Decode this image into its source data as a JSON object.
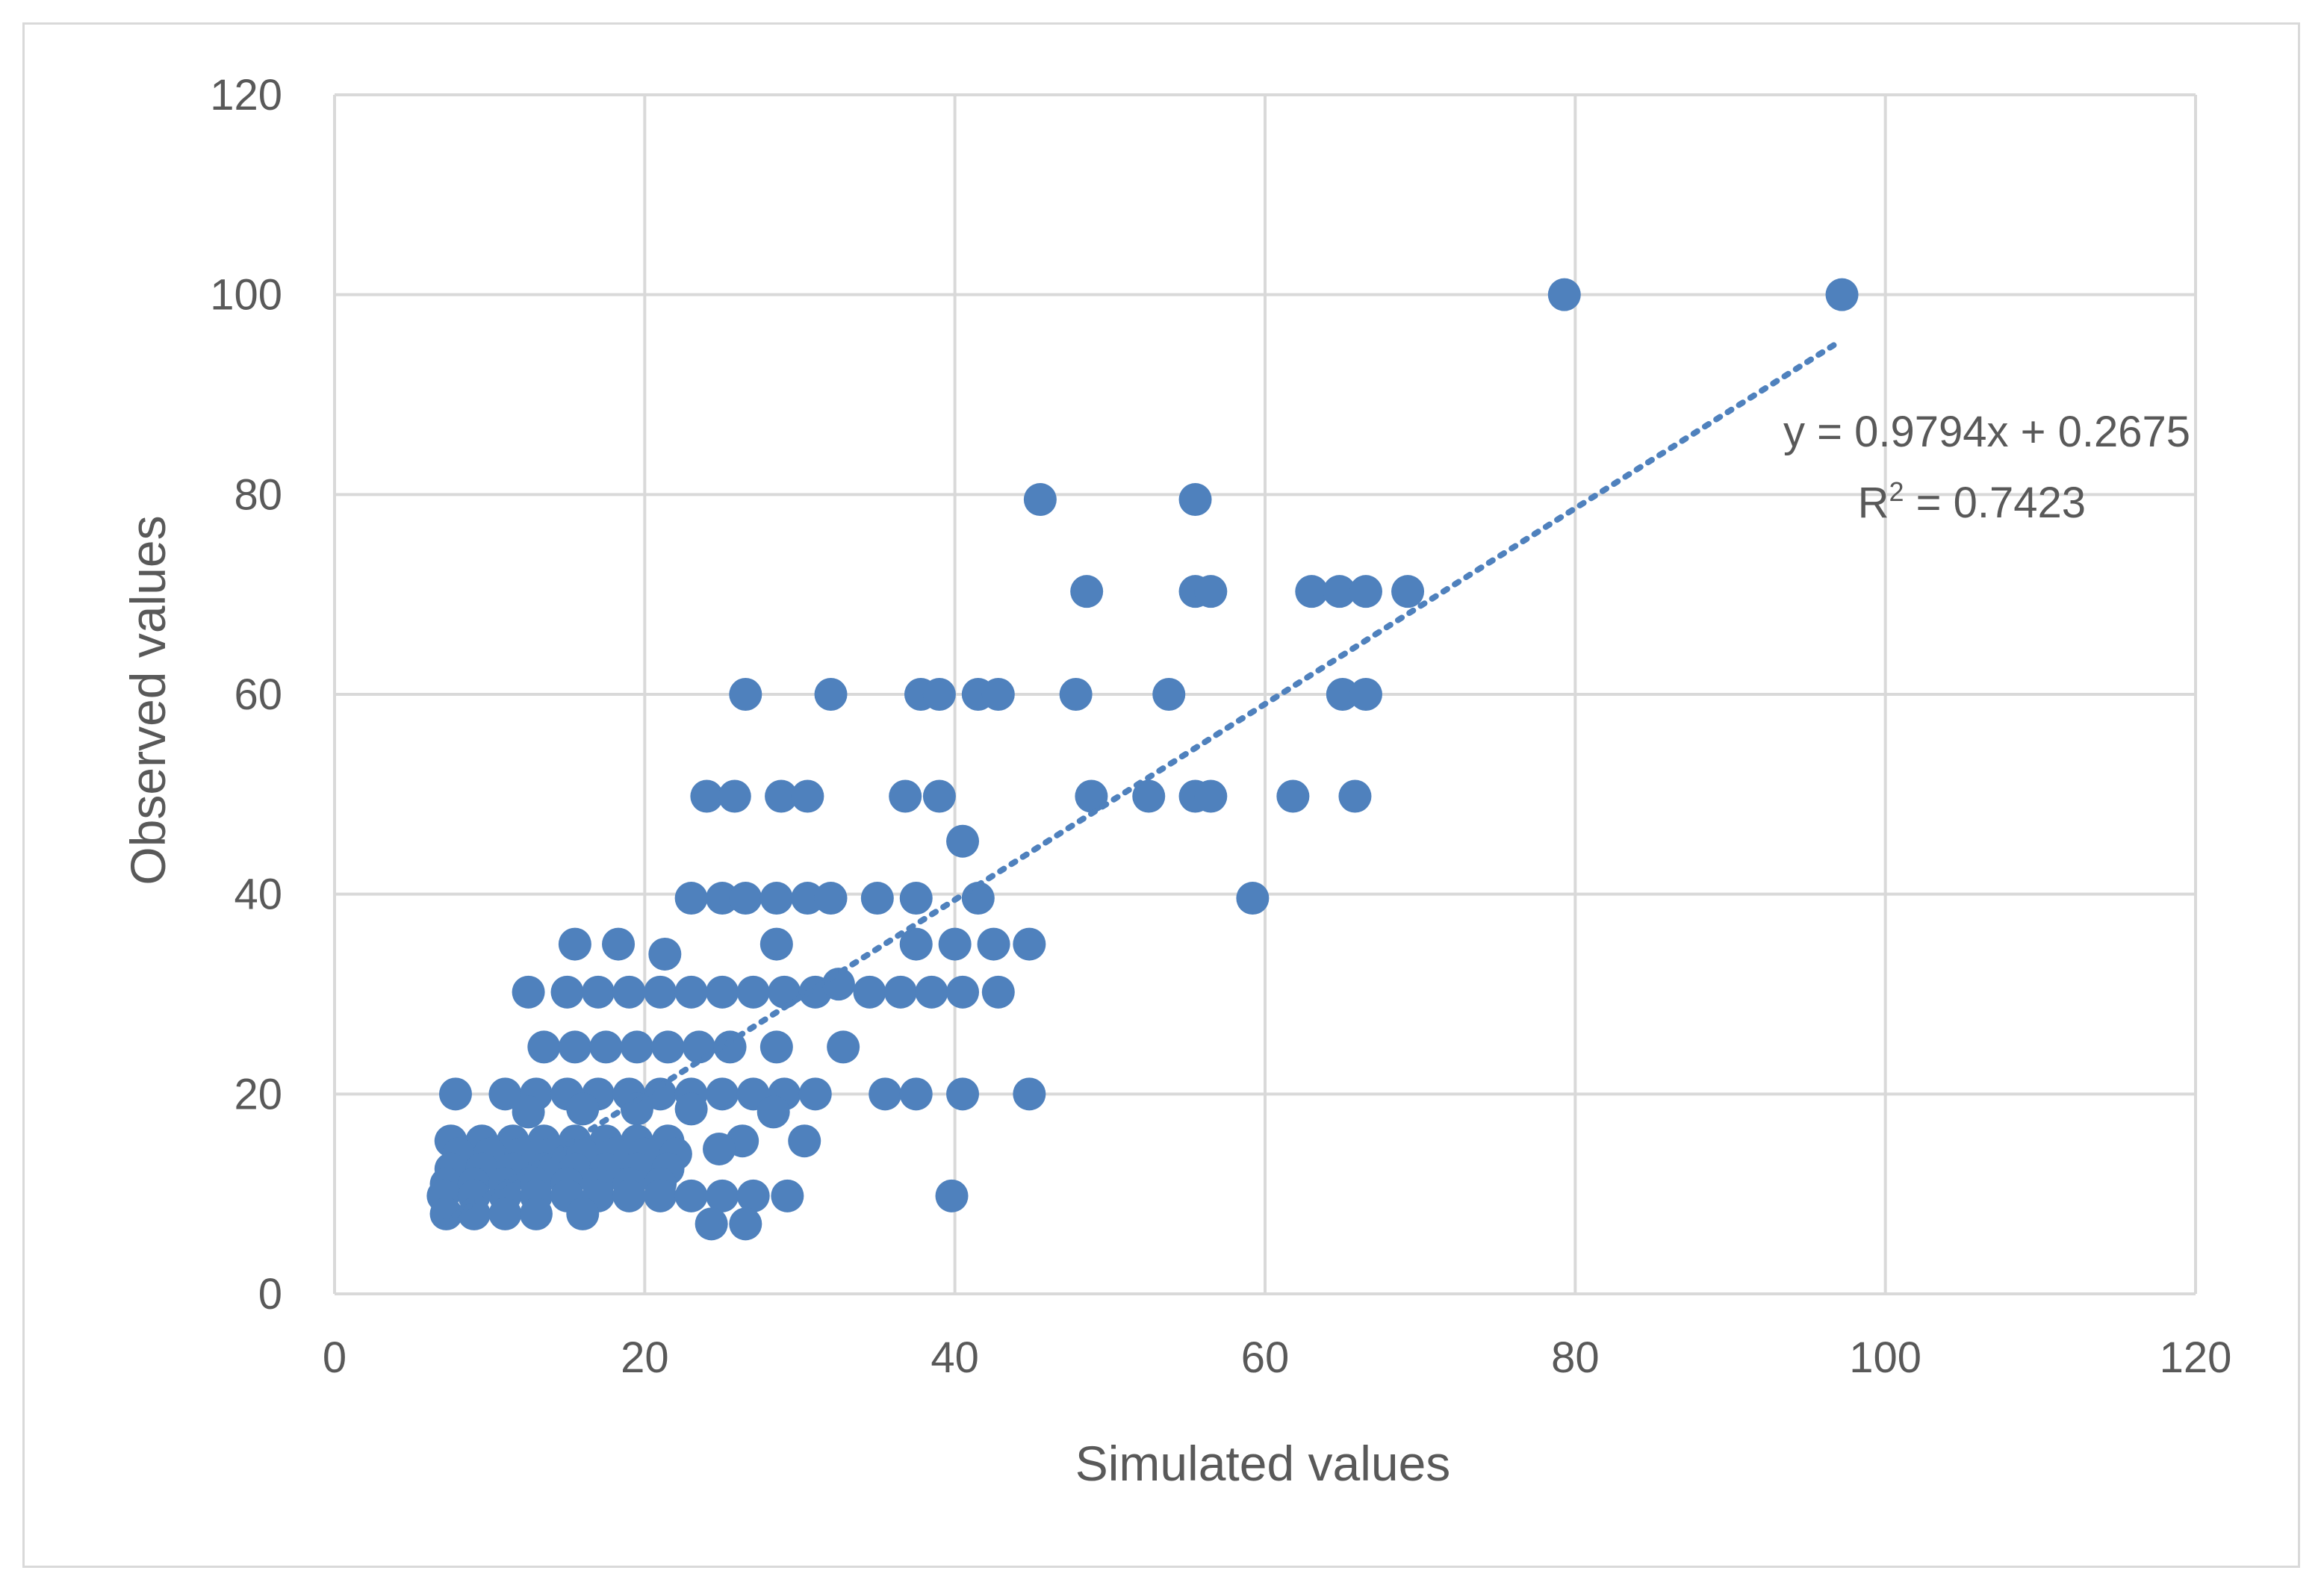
{
  "chart_data": {
    "type": "scatter",
    "title": "",
    "xlabel": "Simulated values",
    "ylabel": "Observed values",
    "xlim": [
      0,
      120
    ],
    "ylim": [
      0,
      120
    ],
    "x_ticks": [
      0,
      20,
      40,
      60,
      80,
      100,
      120
    ],
    "y_ticks": [
      0,
      20,
      40,
      60,
      80,
      100,
      120
    ],
    "grid": true,
    "legend": "none",
    "marker_color": "#4f81bd",
    "trendline": {
      "slope": 0.9794,
      "intercept": 0.2675,
      "style": "dotted",
      "x_range": [
        7,
        97
      ],
      "equation_label": "y = 0.9794x + 0.2675",
      "r2_base": "R",
      "r2_sup": "2",
      "r2_value": " = 0.7423"
    },
    "series": [
      {
        "points": [
          [
            79.3,
            100
          ],
          [
            97.2,
            100
          ],
          [
            45.5,
            79.5
          ],
          [
            55.5,
            79.5
          ],
          [
            48.5,
            70.3
          ],
          [
            55.5,
            70.3
          ],
          [
            56.5,
            70.3
          ],
          [
            63,
            70.3
          ],
          [
            64.8,
            70.3
          ],
          [
            66.5,
            70.3
          ],
          [
            69.2,
            70.3
          ],
          [
            26.5,
            60
          ],
          [
            32,
            60
          ],
          [
            37.8,
            60
          ],
          [
            39,
            60
          ],
          [
            41.5,
            60
          ],
          [
            42.8,
            60
          ],
          [
            47.8,
            60
          ],
          [
            53.8,
            60
          ],
          [
            65,
            60
          ],
          [
            66.5,
            60
          ],
          [
            24,
            49.8
          ],
          [
            25.8,
            49.8
          ],
          [
            28.8,
            49.8
          ],
          [
            30.5,
            49.8
          ],
          [
            36.8,
            49.8
          ],
          [
            39,
            49.8
          ],
          [
            48.8,
            49.8
          ],
          [
            52.5,
            49.8
          ],
          [
            55.5,
            49.8
          ],
          [
            56.5,
            49.8
          ],
          [
            61.8,
            49.8
          ],
          [
            65.8,
            49.8
          ],
          [
            40.5,
            45.3
          ],
          [
            23,
            39.6
          ],
          [
            25,
            39.6
          ],
          [
            26.5,
            39.6
          ],
          [
            28.5,
            39.6
          ],
          [
            30.5,
            39.6
          ],
          [
            32,
            39.6
          ],
          [
            35,
            39.6
          ],
          [
            37.5,
            39.6
          ],
          [
            41.5,
            39.6
          ],
          [
            59.2,
            39.6
          ],
          [
            15.5,
            35
          ],
          [
            18.3,
            35
          ],
          [
            21.3,
            34
          ],
          [
            28.5,
            35
          ],
          [
            37.5,
            35
          ],
          [
            40,
            35
          ],
          [
            42.5,
            35
          ],
          [
            44.8,
            35
          ],
          [
            12.5,
            30.2
          ],
          [
            15,
            30.2
          ],
          [
            17,
            30.2
          ],
          [
            19,
            30.2
          ],
          [
            21,
            30.2
          ],
          [
            23,
            30.2
          ],
          [
            25,
            30.2
          ],
          [
            27,
            30.2
          ],
          [
            29,
            30.2
          ],
          [
            31,
            30.2
          ],
          [
            32.5,
            31
          ],
          [
            34.5,
            30.2
          ],
          [
            36.5,
            30.2
          ],
          [
            38.5,
            30.2
          ],
          [
            40.5,
            30.2
          ],
          [
            42.8,
            30.2
          ],
          [
            13.5,
            24.7
          ],
          [
            15.5,
            24.7
          ],
          [
            17.5,
            24.7
          ],
          [
            19.5,
            24.7
          ],
          [
            21.5,
            24.7
          ],
          [
            23.5,
            24.7
          ],
          [
            25.5,
            24.7
          ],
          [
            28.5,
            24.7
          ],
          [
            32.8,
            24.7
          ],
          [
            7.8,
            20
          ],
          [
            11,
            20
          ],
          [
            13,
            20
          ],
          [
            15,
            20
          ],
          [
            17,
            20
          ],
          [
            19,
            20
          ],
          [
            21,
            20
          ],
          [
            23,
            20
          ],
          [
            25,
            20
          ],
          [
            27,
            20
          ],
          [
            29,
            20
          ],
          [
            31,
            20
          ],
          [
            35.5,
            20
          ],
          [
            37.5,
            20
          ],
          [
            40.5,
            20
          ],
          [
            44.8,
            20
          ],
          [
            12.5,
            18.2
          ],
          [
            16,
            18.5
          ],
          [
            19.5,
            18.5
          ],
          [
            23,
            18.5
          ],
          [
            28.3,
            18.2
          ],
          [
            7.5,
            15.3
          ],
          [
            9.5,
            15.3
          ],
          [
            11.5,
            15.3
          ],
          [
            13.5,
            15.3
          ],
          [
            15.5,
            15.3
          ],
          [
            17.5,
            15.3
          ],
          [
            19.5,
            15.3
          ],
          [
            21.5,
            15.3
          ],
          [
            26.3,
            15.3
          ],
          [
            30.3,
            15.3
          ],
          [
            8,
            14
          ],
          [
            10,
            14
          ],
          [
            12,
            14
          ],
          [
            14,
            14
          ],
          [
            16,
            14
          ],
          [
            18,
            14
          ],
          [
            20,
            14
          ],
          [
            22,
            14
          ],
          [
            24.8,
            14.5
          ],
          [
            7.5,
            12.5
          ],
          [
            9.5,
            12.5
          ],
          [
            11.5,
            12.5
          ],
          [
            13.5,
            12.5
          ],
          [
            15.5,
            12.5
          ],
          [
            17.5,
            12.5
          ],
          [
            19.5,
            12.5
          ],
          [
            21.5,
            12.5
          ],
          [
            7.2,
            11
          ],
          [
            9,
            11
          ],
          [
            11,
            11
          ],
          [
            13,
            11
          ],
          [
            15,
            11
          ],
          [
            17,
            11
          ],
          [
            19,
            11
          ],
          [
            21,
            11
          ],
          [
            7,
            9.8
          ],
          [
            9,
            9.8
          ],
          [
            11,
            9.8
          ],
          [
            13,
            9.8
          ],
          [
            15,
            9.8
          ],
          [
            17,
            9.8
          ],
          [
            19,
            9.8
          ],
          [
            21,
            9.8
          ],
          [
            23,
            9.8
          ],
          [
            25,
            9.8
          ],
          [
            27,
            9.8
          ],
          [
            29.2,
            9.8
          ],
          [
            39.8,
            9.8
          ],
          [
            7.2,
            8
          ],
          [
            9,
            8
          ],
          [
            11,
            8
          ],
          [
            13,
            8
          ],
          [
            16,
            8
          ],
          [
            24.3,
            7
          ],
          [
            26.5,
            7
          ]
        ]
      }
    ]
  }
}
